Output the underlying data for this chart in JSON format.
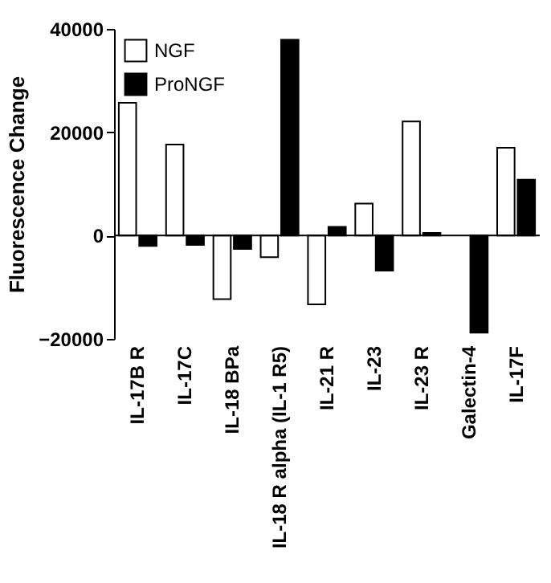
{
  "chart_data": {
    "type": "bar",
    "ylabel": "Fluorescence Change",
    "categories": [
      "IL-17B R",
      "IL-17C",
      "IL-18 BPa",
      "IL-18 R alpha (IL-1 R5)",
      "IL-21 R",
      "IL-23",
      "IL-23 R",
      "Galectin-4",
      "IL-17F"
    ],
    "series": [
      {
        "name": "NGF",
        "color": "#ffffff",
        "values": [
          25700,
          17600,
          -12300,
          -4200,
          -13300,
          6200,
          22100,
          null,
          17000
        ]
      },
      {
        "name": "ProNGF",
        "color": "#000000",
        "values": [
          -2000,
          -1800,
          -2600,
          37900,
          1700,
          -6800,
          500,
          -18800,
          10800
        ]
      }
    ],
    "ylim": [
      -20000,
      40000
    ],
    "yticks": [
      -20000,
      0,
      20000,
      40000
    ],
    "grid": false,
    "legend": "top left",
    "ref_lines": [
      {
        "axis": "y",
        "value": 0
      }
    ]
  }
}
